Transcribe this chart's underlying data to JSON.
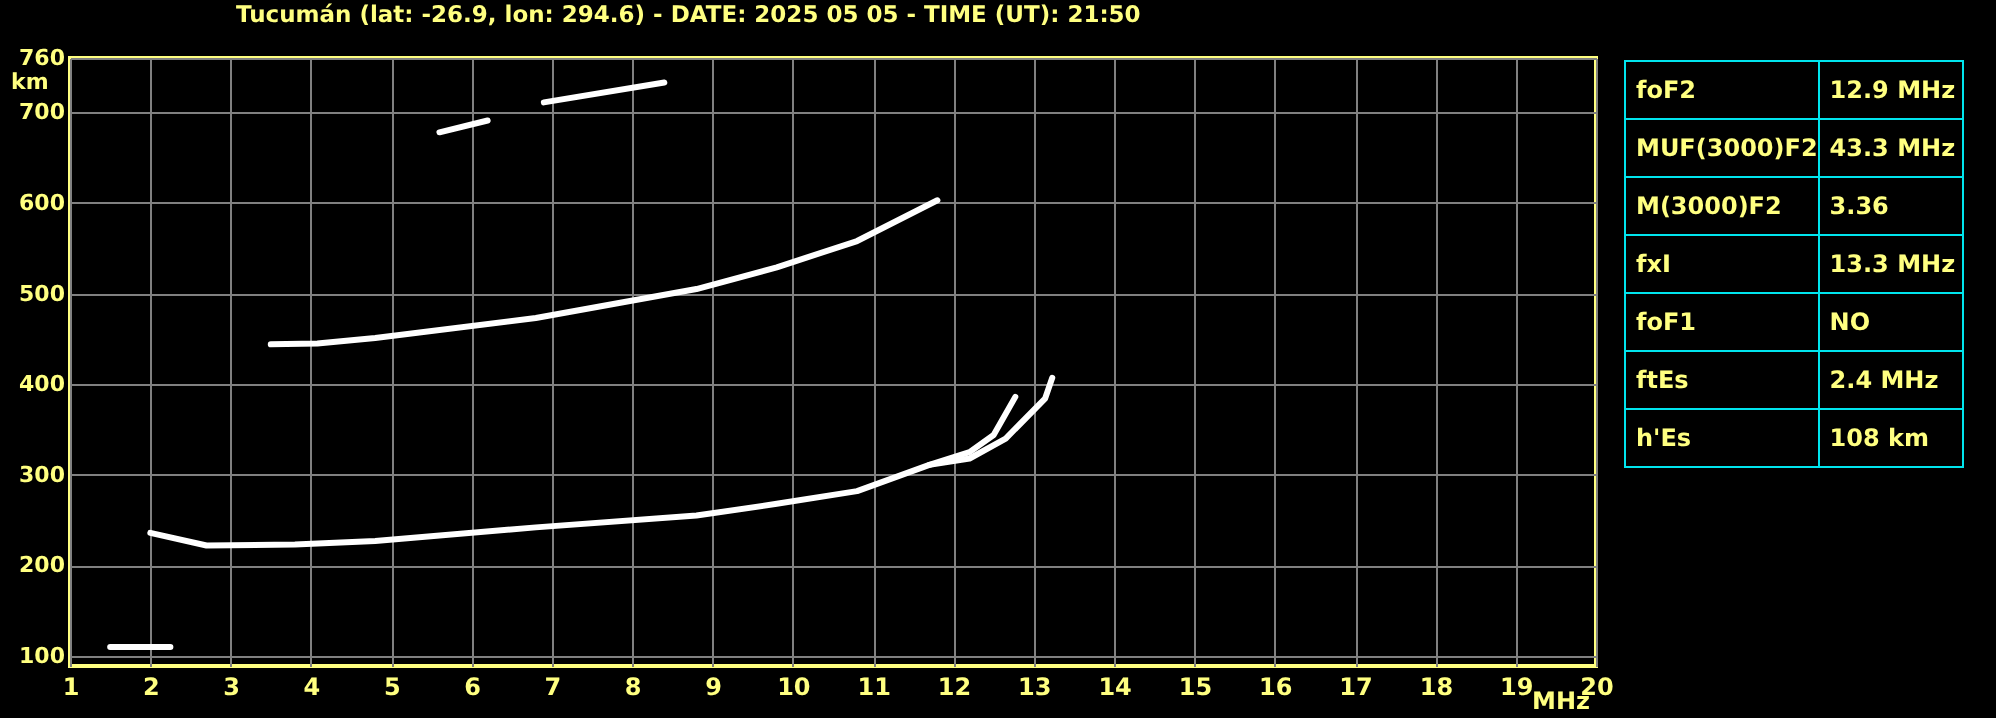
{
  "chart_data": [
    {
      "type": "line",
      "title": "Tucumán (lat: -26.9, lon: 294.6) - DATE: 2025 05 05 - TIME (UT): 21:50",
      "xlabel": "MHz",
      "ylabel": "km",
      "xlim": [
        1,
        20
      ],
      "xticks": [
        1,
        2,
        3,
        4,
        5,
        6,
        7,
        8,
        9,
        10,
        11,
        12,
        13,
        14,
        15,
        16,
        17,
        18,
        19,
        20
      ],
      "ylim": [
        89,
        760
      ],
      "yticks": [
        100,
        200,
        300,
        400,
        500,
        600,
        700,
        760
      ],
      "grid": true,
      "marker": "none",
      "line_style": "solid",
      "series": [
        {
          "color": "#ffffff",
          "x": [
            2.0,
            2.7,
            3.8,
            4.8,
            6.8,
            8.8,
            9.8,
            10.8,
            11.7,
            12.2,
            12.5,
            12.77
          ],
          "values": [
            236,
            222,
            223,
            227,
            242,
            255,
            268,
            282,
            311,
            325,
            344,
            386
          ]
        },
        {
          "color": "#ffffff",
          "x": [
            11.7,
            12.2,
            12.65,
            13.14,
            13.23
          ],
          "values": [
            311,
            318,
            340,
            384,
            407
          ]
        },
        {
          "color": "#ffffff",
          "x": [
            3.5,
            4.08,
            4.8,
            6.8,
            7.8,
            8.8,
            9.8,
            10.8,
            11.8
          ],
          "values": [
            444,
            445,
            451,
            473,
            489,
            505,
            529,
            558,
            603
          ]
        },
        {
          "color": "#ffffff",
          "x": [
            5.6,
            6.2
          ],
          "values": [
            678,
            691
          ]
        },
        {
          "color": "#ffffff",
          "x": [
            6.9,
            8.4
          ],
          "values": [
            711,
            733
          ]
        },
        {
          "color": "#ffffff",
          "x": [
            1.5,
            2.25
          ],
          "values": [
            110,
            110
          ]
        }
      ]
    },
    {
      "type": "other",
      "annotations": [
        "foF2",
        "12.9 MHz",
        "MUF(3000)F2",
        "43.3 MHz",
        "M(3000)F2",
        "3.36",
        "fxI",
        "13.3 MHz",
        "foF1",
        "NO",
        "ftEs",
        "2.4 MHz",
        "h'Es",
        "108 km"
      ]
    }
  ]
}
